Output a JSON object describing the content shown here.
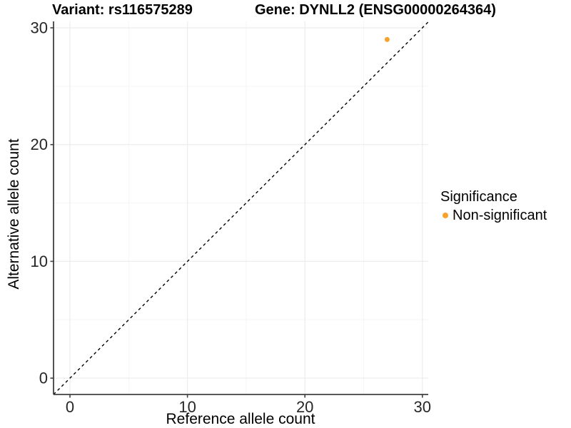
{
  "chart_data": {
    "type": "scatter",
    "titles": {
      "left": "Variant: rs116575289",
      "right": "Gene: DYNLL2 (ENSG00000264364)"
    },
    "xlabel": "Reference allele count",
    "ylabel": "Alternative allele count",
    "xlim": [
      -1.4,
      30.5
    ],
    "ylim": [
      -1.4,
      30.55
    ],
    "xticks": [
      0,
      10,
      20,
      30
    ],
    "yticks": [
      0,
      10,
      20,
      30
    ],
    "xticks_minor": [
      5,
      15,
      25
    ],
    "yticks_minor": [
      5,
      15,
      25
    ],
    "grid": {
      "major_color": "#ececec",
      "minor_color": "#f5f5f5"
    },
    "axis_color": "#404040",
    "tick_label_color": "#262626",
    "identity_line": {
      "style": "dashed",
      "color": "#000000",
      "from": -1.4,
      "to": 30.5
    },
    "series": [
      {
        "name": "Non-significant",
        "color": "#F9A22B",
        "point_radius": 3.5,
        "points": [
          {
            "x": 27,
            "y": 29
          }
        ]
      }
    ],
    "legend": {
      "title": "Significance",
      "position": "right",
      "items": [
        {
          "label": "Non-significant",
          "color": "#F9A22B"
        }
      ]
    }
  }
}
